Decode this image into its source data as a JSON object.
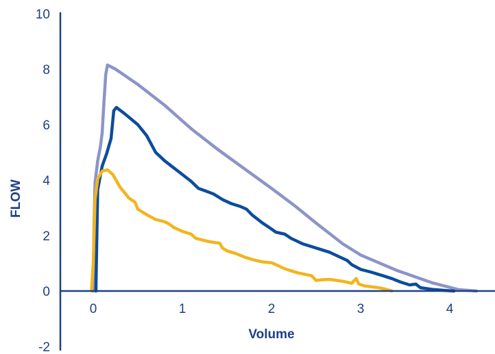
{
  "chart_data": {
    "type": "line",
    "title": "",
    "xlabel": "Volume",
    "ylabel": "FLOW",
    "xlim": [
      -0.35,
      4.45
    ],
    "ylim": [
      -2,
      10
    ],
    "xticks": [
      0,
      1,
      2,
      3,
      4
    ],
    "yticks": [
      -2,
      0,
      2,
      4,
      6,
      8,
      10
    ],
    "xtick_labels": [
      "0",
      "1",
      "2",
      "3",
      "4"
    ],
    "ytick_labels": [
      "-2",
      "0",
      "2",
      "4",
      "6",
      "8",
      "10"
    ],
    "grid": false,
    "legend": "none",
    "axis_color": "#1e3f85",
    "series": [
      {
        "color": "#8c94c8",
        "points": [
          [
            0.0,
            0.0
          ],
          [
            0.01,
            2.5
          ],
          [
            0.02,
            3.9
          ],
          [
            0.05,
            4.7
          ],
          [
            0.08,
            5.2
          ],
          [
            0.1,
            5.7
          ],
          [
            0.12,
            6.8
          ],
          [
            0.14,
            7.8
          ],
          [
            0.16,
            8.15
          ],
          [
            0.25,
            8.0
          ],
          [
            0.5,
            7.45
          ],
          [
            0.8,
            6.7
          ],
          [
            1.1,
            5.85
          ],
          [
            1.4,
            5.1
          ],
          [
            1.7,
            4.4
          ],
          [
            2.0,
            3.7
          ],
          [
            2.25,
            3.1
          ],
          [
            2.5,
            2.45
          ],
          [
            2.8,
            1.7
          ],
          [
            3.0,
            1.3
          ],
          [
            3.4,
            0.75
          ],
          [
            3.8,
            0.3
          ],
          [
            4.1,
            0.05
          ],
          [
            4.3,
            0.0
          ]
        ]
      },
      {
        "color": "#0d4c9c",
        "points": [
          [
            0.03,
            0.0
          ],
          [
            0.04,
            1.9
          ],
          [
            0.05,
            3.65
          ],
          [
            0.07,
            4.0
          ],
          [
            0.1,
            4.5
          ],
          [
            0.15,
            4.95
          ],
          [
            0.2,
            5.5
          ],
          [
            0.23,
            6.5
          ],
          [
            0.26,
            6.62
          ],
          [
            0.35,
            6.4
          ],
          [
            0.5,
            6.0
          ],
          [
            0.6,
            5.6
          ],
          [
            0.7,
            5.0
          ],
          [
            0.8,
            4.7
          ],
          [
            0.9,
            4.45
          ],
          [
            1.0,
            4.2
          ],
          [
            1.1,
            3.95
          ],
          [
            1.18,
            3.7
          ],
          [
            1.25,
            3.62
          ],
          [
            1.35,
            3.5
          ],
          [
            1.45,
            3.3
          ],
          [
            1.55,
            3.15
          ],
          [
            1.65,
            3.05
          ],
          [
            1.72,
            2.95
          ],
          [
            1.78,
            2.75
          ],
          [
            1.9,
            2.45
          ],
          [
            1.98,
            2.28
          ],
          [
            2.05,
            2.12
          ],
          [
            2.15,
            2.05
          ],
          [
            2.22,
            1.9
          ],
          [
            2.35,
            1.7
          ],
          [
            2.5,
            1.55
          ],
          [
            2.65,
            1.4
          ],
          [
            2.75,
            1.25
          ],
          [
            2.85,
            1.1
          ],
          [
            2.9,
            0.95
          ],
          [
            3.0,
            0.78
          ],
          [
            3.12,
            0.68
          ],
          [
            3.25,
            0.55
          ],
          [
            3.35,
            0.45
          ],
          [
            3.45,
            0.32
          ],
          [
            3.55,
            0.22
          ],
          [
            3.62,
            0.25
          ],
          [
            3.67,
            0.12
          ],
          [
            3.8,
            0.06
          ],
          [
            3.95,
            0.02
          ],
          [
            4.05,
            0.0
          ]
        ]
      },
      {
        "color": "#f2b51f",
        "points": [
          [
            -0.02,
            0.0
          ],
          [
            0.0,
            1.0
          ],
          [
            0.02,
            3.3
          ],
          [
            0.05,
            4.05
          ],
          [
            0.1,
            4.32
          ],
          [
            0.16,
            4.37
          ],
          [
            0.22,
            4.2
          ],
          [
            0.3,
            3.75
          ],
          [
            0.4,
            3.35
          ],
          [
            0.47,
            3.2
          ],
          [
            0.5,
            2.95
          ],
          [
            0.6,
            2.75
          ],
          [
            0.7,
            2.58
          ],
          [
            0.8,
            2.5
          ],
          [
            0.85,
            2.42
          ],
          [
            0.9,
            2.3
          ],
          [
            1.0,
            2.15
          ],
          [
            1.1,
            2.05
          ],
          [
            1.15,
            1.9
          ],
          [
            1.3,
            1.78
          ],
          [
            1.42,
            1.72
          ],
          [
            1.45,
            1.55
          ],
          [
            1.5,
            1.45
          ],
          [
            1.6,
            1.35
          ],
          [
            1.7,
            1.22
          ],
          [
            1.8,
            1.12
          ],
          [
            1.9,
            1.05
          ],
          [
            2.0,
            1.02
          ],
          [
            2.05,
            0.95
          ],
          [
            2.15,
            0.8
          ],
          [
            2.3,
            0.65
          ],
          [
            2.45,
            0.55
          ],
          [
            2.5,
            0.38
          ],
          [
            2.55,
            0.4
          ],
          [
            2.65,
            0.42
          ],
          [
            2.8,
            0.35
          ],
          [
            2.9,
            0.28
          ],
          [
            2.95,
            0.45
          ],
          [
            2.98,
            0.25
          ],
          [
            3.05,
            0.18
          ],
          [
            3.2,
            0.12
          ],
          [
            3.3,
            0.05
          ],
          [
            3.35,
            0.0
          ]
        ]
      }
    ]
  }
}
